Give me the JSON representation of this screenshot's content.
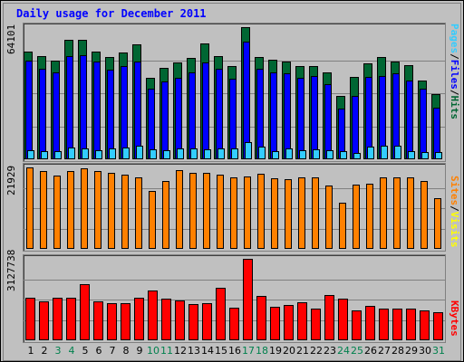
{
  "title": "Daily usage for December 2011",
  "colors": {
    "hits": "#006633",
    "files": "#0000ff",
    "pages": "#33ccff",
    "visits": "#ffff00",
    "sites": "#ff8000",
    "kbytes": "#ff0000",
    "weekday_label": "#000000",
    "weekend_label": "#00804d",
    "title": "#0000ff"
  },
  "chart_data": [
    {
      "type": "bar",
      "categories": [
        "1",
        "2",
        "3",
        "4",
        "5",
        "6",
        "7",
        "8",
        "9",
        "10",
        "11",
        "12",
        "13",
        "14",
        "15",
        "16",
        "17",
        "18",
        "19",
        "20",
        "21",
        "22",
        "23",
        "24",
        "25",
        "26",
        "27",
        "28",
        "29",
        "30",
        "31"
      ],
      "weekend_days": [
        "3",
        "4",
        "10",
        "11",
        "17",
        "18",
        "24",
        "25",
        "31"
      ],
      "max_label": "64101",
      "ylim": [
        0,
        64101
      ],
      "legend": [
        "Pages",
        "/",
        "Files",
        "/",
        "Hits"
      ],
      "series": [
        {
          "name": "Hits",
          "values": [
            52420,
            49860,
            47870,
            57840,
            57990,
            52130,
            49430,
            51700,
            55840,
            39560,
            44400,
            46870,
            49370,
            56330,
            49940,
            45270,
            64101,
            49510,
            48390,
            47220,
            45190,
            45270,
            42180,
            30580,
            39920,
            46390,
            49700,
            47540,
            45730,
            38180,
            31660
          ]
        },
        {
          "name": "Files",
          "values": [
            47820,
            43920,
            42320,
            50010,
            50690,
            47260,
            43590,
            45050,
            47500,
            34340,
            37830,
            39310,
            42040,
            47070,
            43720,
            39020,
            57130,
            43780,
            42120,
            41730,
            39630,
            40220,
            36250,
            24740,
            30650,
            39920,
            40500,
            41730,
            38320,
            34220,
            25240
          ]
        },
        {
          "name": "Pages",
          "values": [
            4280,
            4050,
            3820,
            5560,
            5300,
            4590,
            5050,
            5510,
            6460,
            4890,
            4210,
            5300,
            5200,
            5020,
            5140,
            5420,
            8270,
            6140,
            4170,
            5350,
            4370,
            4920,
            4270,
            3830,
            3040,
            6100,
            6620,
            6680,
            4160,
            3610,
            3720
          ]
        }
      ]
    },
    {
      "type": "bar",
      "categories": [
        "1",
        "2",
        "3",
        "4",
        "5",
        "6",
        "7",
        "8",
        "9",
        "10",
        "11",
        "12",
        "13",
        "14",
        "15",
        "16",
        "17",
        "18",
        "19",
        "20",
        "21",
        "22",
        "23",
        "24",
        "25",
        "26",
        "27",
        "28",
        "29",
        "30",
        "31"
      ],
      "max_label": "21929",
      "ylim": [
        0,
        21929
      ],
      "legend": [
        "Sites",
        "/",
        "Visits"
      ],
      "series": [
        {
          "name": "Visits",
          "values": [
            21930,
            21000,
            19620,
            20970,
            21800,
            20970,
            20510,
            20060,
            19220,
            15640,
            18340,
            21300,
            20500,
            20510,
            20050,
            19250,
            19580,
            20180,
            18980,
            18640,
            19200,
            19160,
            17060,
            12390,
            17180,
            17550,
            19280,
            19200,
            19200,
            18220,
            13550
          ]
        },
        {
          "name": "Sites",
          "values": [
            0,
            0,
            0,
            0,
            0,
            0,
            0,
            0,
            0,
            0,
            0,
            0,
            0,
            0,
            0,
            0,
            0,
            0,
            0,
            0,
            0,
            0,
            0,
            0,
            0,
            0,
            0,
            0,
            0,
            0,
            0
          ]
        }
      ]
    },
    {
      "type": "bar",
      "categories": [
        "1",
        "2",
        "3",
        "4",
        "5",
        "6",
        "7",
        "8",
        "9",
        "10",
        "11",
        "12",
        "13",
        "14",
        "15",
        "16",
        "17",
        "18",
        "19",
        "20",
        "21",
        "22",
        "23",
        "24",
        "25",
        "26",
        "27",
        "28",
        "29",
        "30",
        "31"
      ],
      "max_label": "3127738",
      "ylim": [
        0,
        3127738
      ],
      "legend": [
        "KBytes"
      ],
      "series": [
        {
          "name": "KBytes",
          "values": [
            1640000,
            1480000,
            1640000,
            1630000,
            2170000,
            1490000,
            1410000,
            1430000,
            1640000,
            1920000,
            1600000,
            1530000,
            1400000,
            1440000,
            2020000,
            1250000,
            3127738,
            1690000,
            1300000,
            1370000,
            1450000,
            1230000,
            1740000,
            1610000,
            1160000,
            1310000,
            1230000,
            1230000,
            1210000,
            1130000,
            1070000
          ]
        }
      ]
    }
  ]
}
